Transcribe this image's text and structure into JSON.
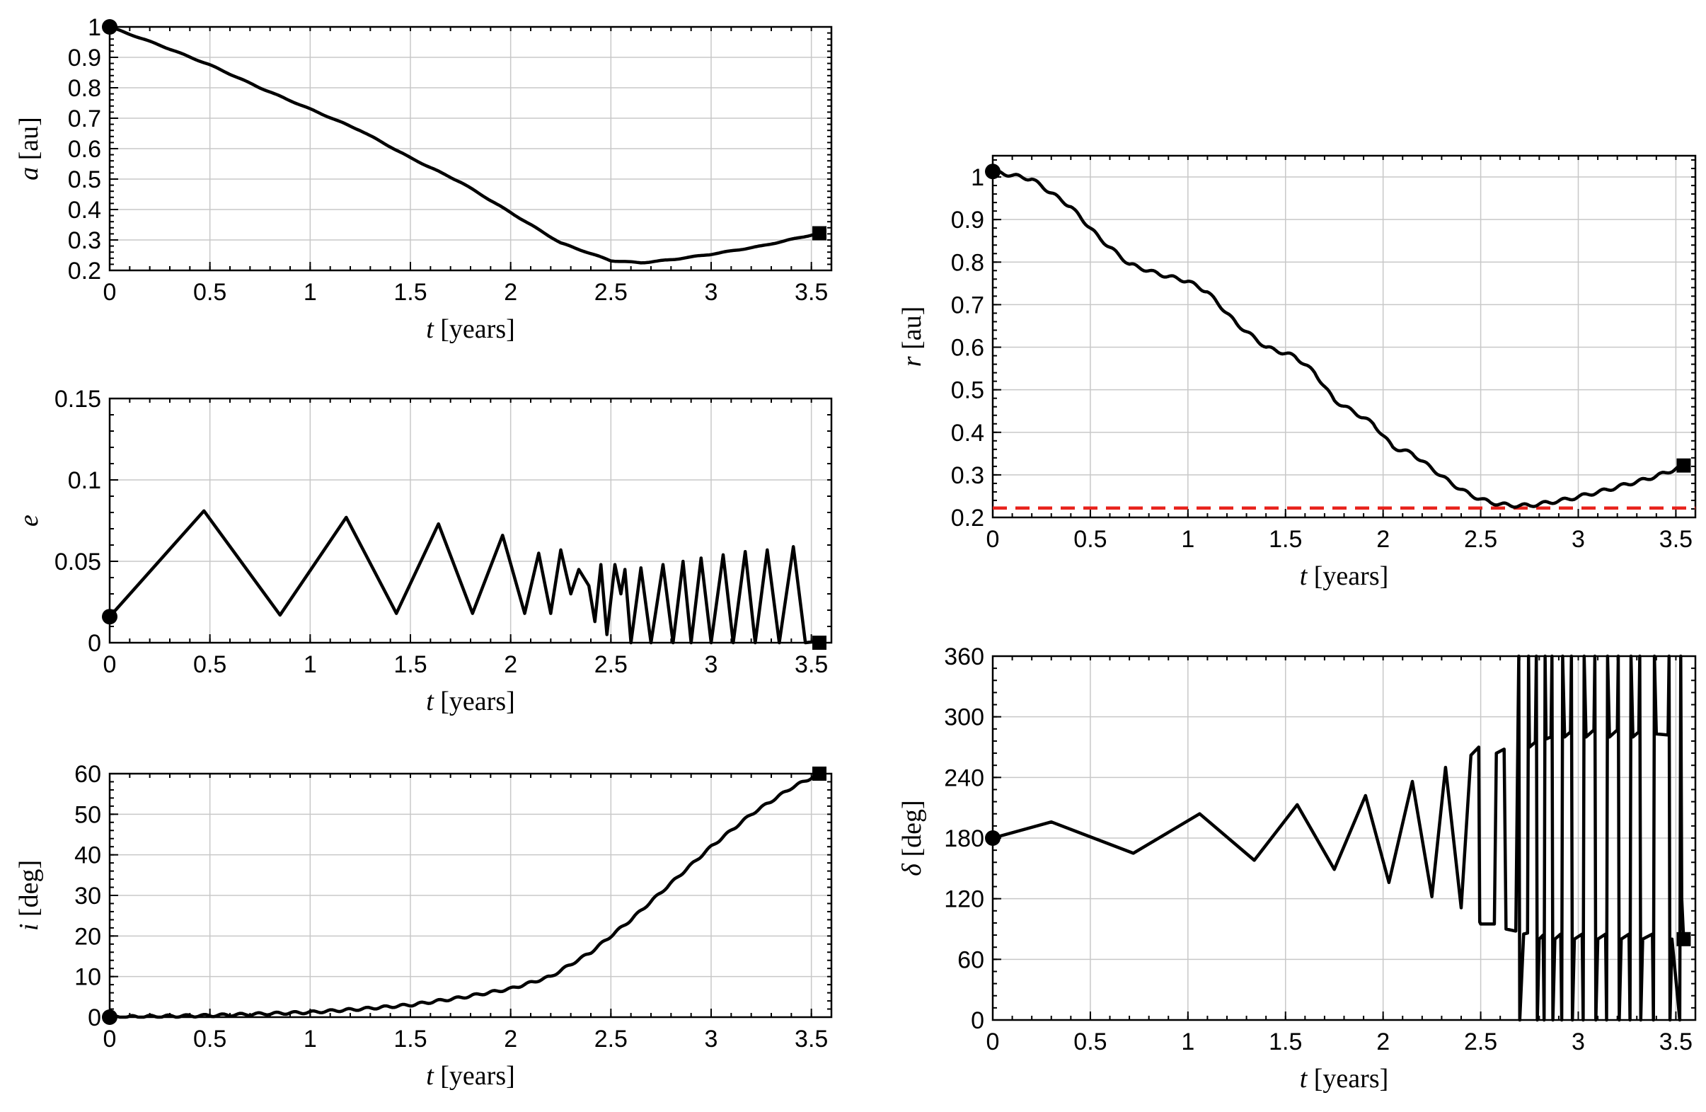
{
  "chart_data": [
    {
      "id": "a",
      "type": "line",
      "ylabel_symbol": "a",
      "ylabel_unit": "[au]",
      "xlabel_symbol": "t",
      "xlabel_unit": "[years]",
      "xlim": [
        0,
        3.6
      ],
      "ylim": [
        0.2,
        1.0
      ],
      "xticks": [
        "0",
        "0.5",
        "1",
        "1.5",
        "2",
        "2.5",
        "3",
        "3.5"
      ],
      "yticks": [
        "0.2",
        "0.3",
        "0.4",
        "0.5",
        "0.6",
        "0.7",
        "0.8",
        "0.9",
        "1"
      ],
      "series": [
        {
          "name": "a",
          "keypoints": [
            [
              0,
              1.0
            ],
            [
              0.25,
              0.94
            ],
            [
              0.5,
              0.875
            ],
            [
              0.75,
              0.8
            ],
            [
              1.0,
              0.73
            ],
            [
              1.25,
              0.66
            ],
            [
              1.5,
              0.57
            ],
            [
              1.75,
              0.49
            ],
            [
              2.0,
              0.39
            ],
            [
              2.25,
              0.29
            ],
            [
              2.5,
              0.232
            ],
            [
              2.65,
              0.225
            ],
            [
              2.8,
              0.235
            ],
            [
              3.0,
              0.253
            ],
            [
              3.25,
              0.28
            ],
            [
              3.54,
              0.322
            ]
          ],
          "wiggle": {
            "amp": 0.0012,
            "period": 0.16
          }
        }
      ],
      "start_marker": [
        0,
        1.0
      ],
      "end_marker": [
        3.54,
        0.322
      ]
    },
    {
      "id": "e",
      "type": "line",
      "ylabel_symbol": "e",
      "ylabel_unit": "",
      "xlabel_symbol": "t",
      "xlabel_unit": "[years]",
      "xlim": [
        0,
        3.6
      ],
      "ylim": [
        0,
        0.15
      ],
      "xticks": [
        "0",
        "0.5",
        "1",
        "1.5",
        "2",
        "2.5",
        "3",
        "3.5"
      ],
      "yticks": [
        "0",
        "0.05",
        "0.1",
        "0.15"
      ],
      "series": [
        {
          "name": "e",
          "keypoints": [
            [
              0,
              0.016
            ],
            [
              0.47,
              0.081
            ],
            [
              0.85,
              0.017
            ],
            [
              1.18,
              0.077
            ],
            [
              1.43,
              0.018
            ],
            [
              1.64,
              0.073
            ],
            [
              1.81,
              0.018
            ],
            [
              1.96,
              0.066
            ],
            [
              2.07,
              0.018
            ],
            [
              2.14,
              0.055
            ],
            [
              2.2,
              0.018
            ],
            [
              2.25,
              0.057
            ],
            [
              2.3,
              0.03
            ],
            [
              2.34,
              0.045
            ],
            [
              2.39,
              0.035
            ],
            [
              2.42,
              0.013
            ],
            [
              2.45,
              0.048
            ],
            [
              2.48,
              0.005
            ],
            [
              2.52,
              0.048
            ],
            [
              2.55,
              0.03
            ],
            [
              2.57,
              0.045
            ],
            [
              2.6,
              0.0
            ],
            [
              2.65,
              0.046
            ],
            [
              2.7,
              0.0
            ],
            [
              2.76,
              0.048
            ],
            [
              2.81,
              0.0
            ],
            [
              2.86,
              0.05
            ],
            [
              2.9,
              0.0
            ],
            [
              2.95,
              0.052
            ],
            [
              3.0,
              0.0
            ],
            [
              3.06,
              0.054
            ],
            [
              3.11,
              0.0
            ],
            [
              3.17,
              0.056
            ],
            [
              3.22,
              0.0
            ],
            [
              3.28,
              0.057
            ],
            [
              3.34,
              0.0
            ],
            [
              3.41,
              0.059
            ],
            [
              3.47,
              0.0
            ],
            [
              3.54,
              0.001
            ]
          ]
        }
      ],
      "start_marker": [
        0,
        0.016
      ],
      "end_marker": [
        3.54,
        0.0
      ]
    },
    {
      "id": "i",
      "type": "line",
      "ylabel_symbol": "i",
      "ylabel_unit": "[deg]",
      "xlabel_symbol": "t",
      "xlabel_unit": "[years]",
      "xlim": [
        0,
        3.6
      ],
      "ylim": [
        0,
        60
      ],
      "xticks": [
        "0",
        "0.5",
        "1",
        "1.5",
        "2",
        "2.5",
        "3",
        "3.5"
      ],
      "yticks": [
        "0",
        "10",
        "20",
        "30",
        "40",
        "50",
        "60"
      ],
      "series": [
        {
          "name": "i",
          "keypoints": [
            [
              0,
              0
            ],
            [
              0.5,
              0.4
            ],
            [
              1.0,
              1.2
            ],
            [
              1.25,
              2.0
            ],
            [
              1.5,
              3.0
            ],
            [
              1.75,
              4.8
            ],
            [
              2.0,
              7.0
            ],
            [
              2.2,
              10.0
            ],
            [
              2.4,
              16.0
            ],
            [
              2.6,
              24.0
            ],
            [
              2.8,
              33.0
            ],
            [
              3.0,
              42.0
            ],
            [
              3.2,
              50.0
            ],
            [
              3.4,
              56.5
            ],
            [
              3.54,
              60.0
            ]
          ],
          "wiggle": {
            "amp": 0.3,
            "period": 0.09
          }
        }
      ],
      "start_marker": [
        0,
        0
      ],
      "end_marker": [
        3.54,
        60
      ]
    },
    {
      "id": "r",
      "type": "line",
      "ylabel_symbol": "r",
      "ylabel_unit": "[au]",
      "xlabel_symbol": "t",
      "xlabel_unit": "[years]",
      "xlim": [
        0,
        3.6
      ],
      "ylim": [
        0.2,
        1.05
      ],
      "xticks": [
        "0",
        "0.5",
        "1",
        "1.5",
        "2",
        "2.5",
        "3",
        "3.5"
      ],
      "yticks": [
        "0.2",
        "0.3",
        "0.4",
        "0.5",
        "0.6",
        "0.7",
        "0.8",
        "0.9",
        "1"
      ],
      "series": [
        {
          "name": "r",
          "keypoints": [
            [
              0,
              1.013
            ],
            [
              0.2,
              0.995
            ],
            [
              0.4,
              0.93
            ],
            [
              0.55,
              0.855
            ],
            [
              0.7,
              0.795
            ],
            [
              0.85,
              0.772
            ],
            [
              1.0,
              0.755
            ],
            [
              1.1,
              0.73
            ],
            [
              1.25,
              0.655
            ],
            [
              1.4,
              0.6
            ],
            [
              1.55,
              0.578
            ],
            [
              1.65,
              0.54
            ],
            [
              1.75,
              0.475
            ],
            [
              1.85,
              0.448
            ],
            [
              1.95,
              0.42
            ],
            [
              2.05,
              0.365
            ],
            [
              2.15,
              0.35
            ],
            [
              2.25,
              0.315
            ],
            [
              2.35,
              0.28
            ],
            [
              2.45,
              0.252
            ],
            [
              2.55,
              0.235
            ],
            [
              2.65,
              0.228
            ],
            [
              2.75,
              0.228
            ],
            [
              2.85,
              0.235
            ],
            [
              2.95,
              0.243
            ],
            [
              3.05,
              0.254
            ],
            [
              3.15,
              0.265
            ],
            [
              3.25,
              0.278
            ],
            [
              3.35,
              0.29
            ],
            [
              3.45,
              0.305
            ],
            [
              3.54,
              0.322
            ]
          ],
          "wiggle": {
            "amp": 0.004,
            "period": 0.1
          }
        }
      ],
      "reference_line": {
        "y": 0.222,
        "color": "#e8231c",
        "style": "dashed"
      },
      "start_marker": [
        0,
        1.013
      ],
      "end_marker": [
        3.54,
        0.322
      ]
    },
    {
      "id": "delta",
      "type": "line",
      "ylabel_symbol": "δ",
      "ylabel_unit": "[deg]",
      "xlabel_symbol": "t",
      "xlabel_unit": "[years]",
      "xlim": [
        0,
        3.6
      ],
      "ylim": [
        0,
        360
      ],
      "xticks": [
        "0",
        "0.5",
        "1",
        "1.5",
        "2",
        "2.5",
        "3",
        "3.5"
      ],
      "yticks": [
        "0",
        "60",
        "120",
        "180",
        "240",
        "300",
        "360"
      ],
      "series": [
        {
          "name": "delta",
          "keypoints": [
            [
              0,
              180
            ],
            [
              0.3,
              196
            ],
            [
              0.72,
              165
            ],
            [
              1.06,
              204
            ],
            [
              1.34,
              158
            ],
            [
              1.56,
              213
            ],
            [
              1.75,
              149
            ],
            [
              1.91,
              222
            ],
            [
              2.03,
              136
            ],
            [
              2.15,
              236
            ],
            [
              2.25,
              122
            ],
            [
              2.32,
              250
            ],
            [
              2.4,
              111
            ],
            [
              2.45,
              262
            ],
            [
              2.49,
              270
            ],
            [
              2.495,
              97
            ],
            [
              2.5,
              95
            ],
            [
              2.57,
              95
            ],
            [
              2.58,
              264
            ],
            [
              2.62,
              268
            ],
            [
              2.63,
              90
            ],
            [
              2.68,
              88
            ],
            [
              2.69,
              270
            ],
            [
              2.695,
              360
            ],
            [
              2.7,
              0
            ],
            [
              2.72,
              85
            ],
            [
              2.74,
              86
            ],
            [
              2.745,
              360
            ],
            [
              2.75,
              270
            ],
            [
              2.78,
              275
            ],
            [
              2.785,
              360
            ],
            [
              2.79,
              0
            ],
            [
              2.8,
              80
            ],
            [
              2.82,
              84
            ],
            [
              2.825,
              0
            ],
            [
              2.83,
              360
            ],
            [
              2.835,
              278
            ],
            [
              2.86,
              280
            ],
            [
              2.865,
              360
            ],
            [
              2.87,
              0
            ],
            [
              2.88,
              80
            ],
            [
              2.91,
              85
            ],
            [
              2.915,
              0
            ],
            [
              2.92,
              360
            ],
            [
              2.93,
              280
            ],
            [
              2.96,
              285
            ],
            [
              2.965,
              360
            ],
            [
              2.97,
              0
            ],
            [
              2.98,
              80
            ],
            [
              3.02,
              85
            ],
            [
              3.025,
              0
            ],
            [
              3.03,
              360
            ],
            [
              3.04,
              280
            ],
            [
              3.08,
              287
            ],
            [
              3.085,
              360
            ],
            [
              3.09,
              0
            ],
            [
              3.1,
              80
            ],
            [
              3.14,
              85
            ],
            [
              3.145,
              0
            ],
            [
              3.15,
              360
            ],
            [
              3.16,
              280
            ],
            [
              3.2,
              287
            ],
            [
              3.205,
              360
            ],
            [
              3.21,
              0
            ],
            [
              3.22,
              80
            ],
            [
              3.26,
              85
            ],
            [
              3.265,
              0
            ],
            [
              3.27,
              360
            ],
            [
              3.28,
              280
            ],
            [
              3.31,
              285
            ],
            [
              3.315,
              360
            ],
            [
              3.32,
              0
            ],
            [
              3.33,
              80
            ],
            [
              3.38,
              85
            ],
            [
              3.385,
              0
            ],
            [
              3.39,
              360
            ],
            [
              3.4,
              283
            ],
            [
              3.46,
              282
            ],
            [
              3.465,
              360
            ],
            [
              3.47,
              0
            ],
            [
              3.48,
              80
            ],
            [
              3.51,
              20
            ],
            [
              3.52,
              0
            ],
            [
              3.525,
              360
            ],
            [
              3.53,
              120
            ],
            [
              3.54,
              80
            ]
          ]
        }
      ],
      "start_marker": [
        0,
        180
      ],
      "end_marker": [
        3.54,
        80
      ]
    }
  ]
}
